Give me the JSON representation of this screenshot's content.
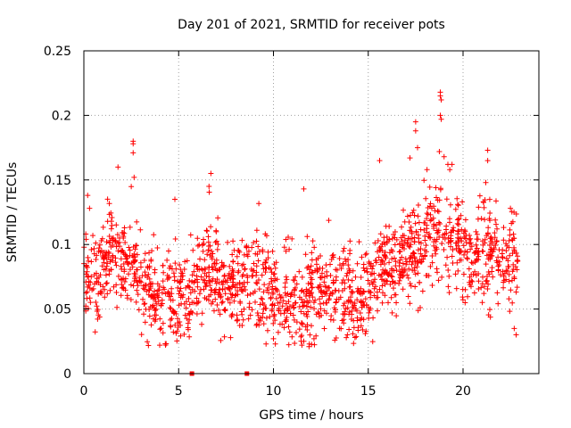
{
  "chart_data": {
    "type": "scatter",
    "title": "Day 201 of 2021, SRMTID for receiver pots",
    "xlabel": "GPS time / hours",
    "ylabel": "SRMTID / TECUs",
    "xlim": [
      0,
      24
    ],
    "ylim": [
      0,
      0.25
    ],
    "xticks": [
      0,
      5,
      10,
      15,
      20
    ],
    "xtick_labels": [
      "0",
      "5",
      "10",
      "15",
      "20"
    ],
    "yticks": [
      0,
      0.05,
      0.1,
      0.15,
      0.2,
      0.25
    ],
    "ytick_labels": [
      "0",
      "0.05",
      "0.1",
      "0.15",
      "0.2",
      "0.25"
    ],
    "grid": true,
    "marker": "plus",
    "marker_color": "#ff0000",
    "series": [
      {
        "name": "pots",
        "points_per_hour": 75,
        "x_range": [
          0,
          22.9
        ],
        "seed": 201,
        "baseline": [
          [
            0,
            0.072
          ],
          [
            1,
            0.075
          ],
          [
            1.5,
            0.092
          ],
          [
            2,
            0.088
          ],
          [
            2.7,
            0.082
          ],
          [
            3,
            0.068
          ],
          [
            4,
            0.058
          ],
          [
            5,
            0.058
          ],
          [
            5.5,
            0.055
          ],
          [
            6,
            0.068
          ],
          [
            6.5,
            0.08
          ],
          [
            7,
            0.07
          ],
          [
            7.5,
            0.062
          ],
          [
            8,
            0.065
          ],
          [
            8.5,
            0.07
          ],
          [
            9,
            0.075
          ],
          [
            10,
            0.06
          ],
          [
            11,
            0.055
          ],
          [
            11.5,
            0.052
          ],
          [
            12,
            0.06
          ],
          [
            13,
            0.062
          ],
          [
            14,
            0.058
          ],
          [
            14.5,
            0.052
          ],
          [
            15,
            0.065
          ],
          [
            15.5,
            0.075
          ],
          [
            16,
            0.082
          ],
          [
            17,
            0.092
          ],
          [
            18,
            0.1
          ],
          [
            18.5,
            0.108
          ],
          [
            19,
            0.11
          ],
          [
            19.5,
            0.105
          ],
          [
            20,
            0.095
          ],
          [
            21,
            0.088
          ],
          [
            21.5,
            0.092
          ],
          [
            22,
            0.085
          ],
          [
            22.9,
            0.085
          ]
        ],
        "noise_sd": 0.018,
        "noise_floor": 0.02,
        "outliers": [
          [
            0.2,
            0.138
          ],
          [
            0.3,
            0.128
          ],
          [
            1.8,
            0.16
          ],
          [
            2.6,
            0.18
          ],
          [
            2.6,
            0.178
          ],
          [
            2.6,
            0.171
          ],
          [
            2.65,
            0.152
          ],
          [
            4.8,
            0.135
          ],
          [
            6.7,
            0.155
          ],
          [
            6.6,
            0.145
          ],
          [
            11.6,
            0.143
          ],
          [
            15.6,
            0.165
          ],
          [
            17.2,
            0.167
          ],
          [
            17.5,
            0.195
          ],
          [
            17.5,
            0.188
          ],
          [
            17.6,
            0.175
          ],
          [
            18.1,
            0.158
          ],
          [
            18.8,
            0.218
          ],
          [
            18.8,
            0.215
          ],
          [
            18.85,
            0.212
          ],
          [
            18.8,
            0.2
          ],
          [
            18.85,
            0.197
          ],
          [
            18.75,
            0.172
          ],
          [
            19.0,
            0.168
          ],
          [
            19.2,
            0.162
          ],
          [
            19.3,
            0.158
          ],
          [
            21.3,
            0.173
          ],
          [
            21.3,
            0.165
          ],
          [
            21.2,
            0.148
          ],
          [
            22.5,
            0.128
          ],
          [
            22.7,
            0.035
          ],
          [
            22.8,
            0.03
          ],
          [
            4.0,
            0.022
          ],
          [
            11.5,
            0.022
          ],
          [
            11.6,
            0.025
          ],
          [
            13.9,
            0.03
          ],
          [
            14.3,
            0.028
          ],
          [
            10.0,
            0.027
          ],
          [
            10.1,
            0.023
          ]
        ]
      }
    ],
    "zero_markers": {
      "x": [
        5.7,
        8.6
      ],
      "y": [
        0,
        0
      ],
      "marker": "square",
      "color": "#ff0000"
    }
  }
}
